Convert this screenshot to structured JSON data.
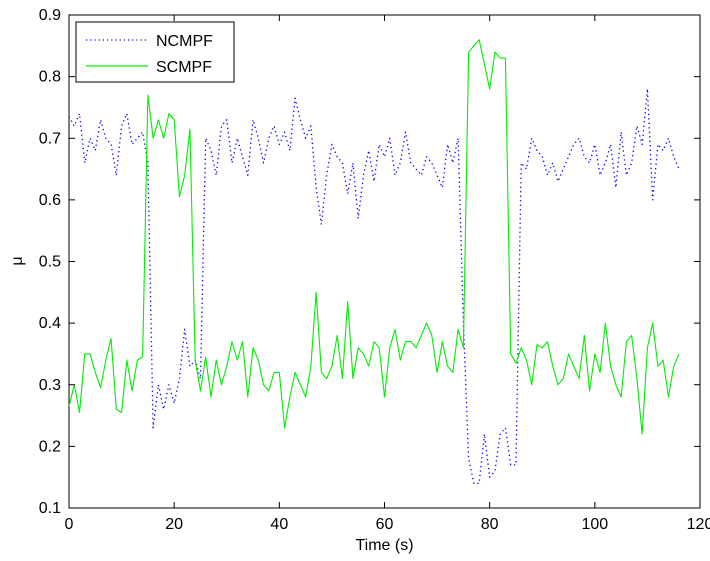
{
  "chart_data": {
    "type": "line",
    "title": "",
    "xlabel": "Time (s)",
    "ylabel": "μ",
    "xlim": [
      0,
      120
    ],
    "ylim": [
      0.1,
      0.9
    ],
    "xticks": [
      0,
      20,
      40,
      60,
      80,
      100,
      120
    ],
    "yticks": [
      0.1,
      0.2,
      0.3,
      0.4,
      0.5,
      0.6,
      0.7,
      0.8,
      0.9
    ],
    "grid": false,
    "legend_position": "top-left",
    "x": [
      0,
      1,
      2,
      3,
      4,
      5,
      6,
      7,
      8,
      9,
      10,
      11,
      12,
      13,
      14,
      15,
      16,
      17,
      18,
      19,
      20,
      21,
      22,
      23,
      24,
      25,
      26,
      27,
      28,
      29,
      30,
      31,
      32,
      33,
      34,
      35,
      36,
      37,
      38,
      39,
      40,
      41,
      42,
      43,
      44,
      45,
      46,
      47,
      48,
      49,
      50,
      51,
      52,
      53,
      54,
      55,
      56,
      57,
      58,
      59,
      60,
      61,
      62,
      63,
      64,
      65,
      66,
      67,
      68,
      69,
      70,
      71,
      72,
      73,
      74,
      75,
      76,
      77,
      78,
      79,
      80,
      81,
      82,
      83,
      84,
      85,
      86,
      87,
      88,
      89,
      90,
      91,
      92,
      93,
      94,
      95,
      96,
      97,
      98,
      99,
      100,
      101,
      102,
      103,
      104,
      105,
      106,
      107,
      108,
      109,
      110,
      111,
      112,
      113,
      114,
      115,
      116
    ],
    "series": [
      {
        "name": "NCMPF",
        "color": "#0000ff",
        "style": "dotted",
        "values": [
          0.735,
          0.72,
          0.74,
          0.66,
          0.7,
          0.68,
          0.73,
          0.7,
          0.69,
          0.64,
          0.72,
          0.74,
          0.69,
          0.7,
          0.71,
          0.66,
          0.23,
          0.3,
          0.26,
          0.3,
          0.27,
          0.31,
          0.39,
          0.33,
          0.34,
          0.31,
          0.7,
          0.68,
          0.64,
          0.72,
          0.73,
          0.66,
          0.7,
          0.67,
          0.64,
          0.73,
          0.7,
          0.66,
          0.7,
          0.72,
          0.69,
          0.71,
          0.68,
          0.765,
          0.73,
          0.7,
          0.72,
          0.62,
          0.56,
          0.64,
          0.69,
          0.67,
          0.66,
          0.61,
          0.66,
          0.57,
          0.64,
          0.68,
          0.63,
          0.69,
          0.67,
          0.7,
          0.64,
          0.66,
          0.71,
          0.66,
          0.65,
          0.64,
          0.67,
          0.66,
          0.64,
          0.62,
          0.69,
          0.66,
          0.7,
          0.4,
          0.18,
          0.14,
          0.14,
          0.22,
          0.15,
          0.16,
          0.22,
          0.23,
          0.17,
          0.17,
          0.66,
          0.65,
          0.7,
          0.68,
          0.67,
          0.64,
          0.66,
          0.63,
          0.65,
          0.67,
          0.69,
          0.7,
          0.67,
          0.66,
          0.69,
          0.64,
          0.66,
          0.69,
          0.62,
          0.71,
          0.64,
          0.66,
          0.72,
          0.69,
          0.78,
          0.6,
          0.69,
          0.68,
          0.7,
          0.67,
          0.65
        ]
      },
      {
        "name": "SCMPF",
        "color": "#00ee00",
        "style": "solid",
        "values": [
          0.265,
          0.3,
          0.255,
          0.35,
          0.35,
          0.32,
          0.295,
          0.34,
          0.375,
          0.26,
          0.255,
          0.34,
          0.29,
          0.34,
          0.345,
          0.77,
          0.7,
          0.73,
          0.7,
          0.74,
          0.73,
          0.605,
          0.64,
          0.715,
          0.34,
          0.29,
          0.345,
          0.28,
          0.34,
          0.3,
          0.33,
          0.37,
          0.34,
          0.37,
          0.28,
          0.36,
          0.34,
          0.3,
          0.29,
          0.32,
          0.32,
          0.23,
          0.28,
          0.32,
          0.3,
          0.28,
          0.33,
          0.45,
          0.32,
          0.31,
          0.33,
          0.38,
          0.31,
          0.435,
          0.31,
          0.36,
          0.35,
          0.33,
          0.37,
          0.36,
          0.28,
          0.36,
          0.39,
          0.34,
          0.37,
          0.37,
          0.36,
          0.38,
          0.4,
          0.38,
          0.32,
          0.37,
          0.33,
          0.32,
          0.39,
          0.36,
          0.84,
          0.85,
          0.86,
          0.82,
          0.78,
          0.84,
          0.83,
          0.83,
          0.35,
          0.335,
          0.36,
          0.34,
          0.3,
          0.365,
          0.36,
          0.37,
          0.33,
          0.3,
          0.31,
          0.35,
          0.33,
          0.31,
          0.38,
          0.29,
          0.35,
          0.32,
          0.4,
          0.33,
          0.3,
          0.28,
          0.37,
          0.38,
          0.31,
          0.22,
          0.36,
          0.4,
          0.33,
          0.34,
          0.28,
          0.33,
          0.35
        ]
      }
    ]
  }
}
